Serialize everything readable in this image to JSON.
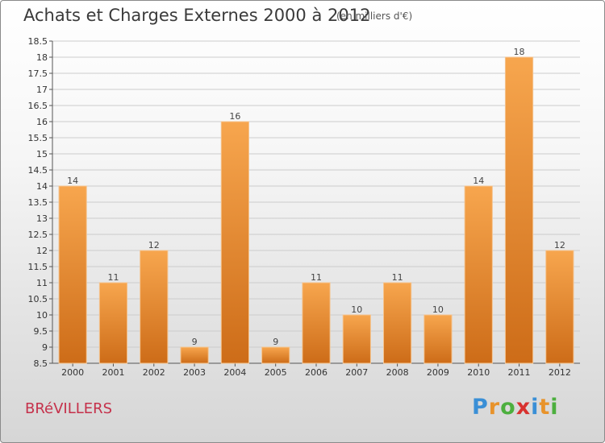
{
  "header": {
    "title": "Achats et Charges Externes 2000 à 2012",
    "unit": "(en milliers d'€)"
  },
  "footer": {
    "commune": "BRéVILLERS",
    "logo": {
      "letters": [
        "P",
        "r",
        "o",
        "x",
        "i",
        "t",
        "i"
      ],
      "colors": [
        "#3a8fd6",
        "#e8932b",
        "#4caf3e",
        "#d8322f",
        "#3a8fd6",
        "#e8932b",
        "#4caf3e"
      ]
    }
  },
  "colors": {
    "bar_light": "#f7a64e",
    "bar_dark": "#cd6c18",
    "grid": "#cccccc",
    "axis": "#555555"
  },
  "chart_data": {
    "type": "bar",
    "title": "Achats et Charges Externes 2000 à 2012",
    "subtitle": "(en milliers d'€)",
    "categories": [
      "2000",
      "2001",
      "2002",
      "2003",
      "2004",
      "2005",
      "2006",
      "2007",
      "2008",
      "2009",
      "2010",
      "2011",
      "2012"
    ],
    "values": [
      14,
      11,
      12,
      9,
      16,
      9,
      11,
      10,
      11,
      10,
      14,
      18,
      12
    ],
    "value_labels": [
      "14",
      "11",
      "12",
      "9",
      "16",
      "9",
      "11",
      "10",
      "11",
      "10",
      "14",
      "18",
      "12"
    ],
    "ylim": [
      8.5,
      18.5
    ],
    "yticks": [
      "8.5",
      "9",
      "9.5",
      "10",
      "10.5",
      "11",
      "11.5",
      "12",
      "12.5",
      "13",
      "13.5",
      "14",
      "14.5",
      "15",
      "15.5",
      "16",
      "16.5",
      "17",
      "17.5",
      "18",
      "18.5"
    ],
    "grid": true,
    "xlabel": "",
    "ylabel": ""
  }
}
